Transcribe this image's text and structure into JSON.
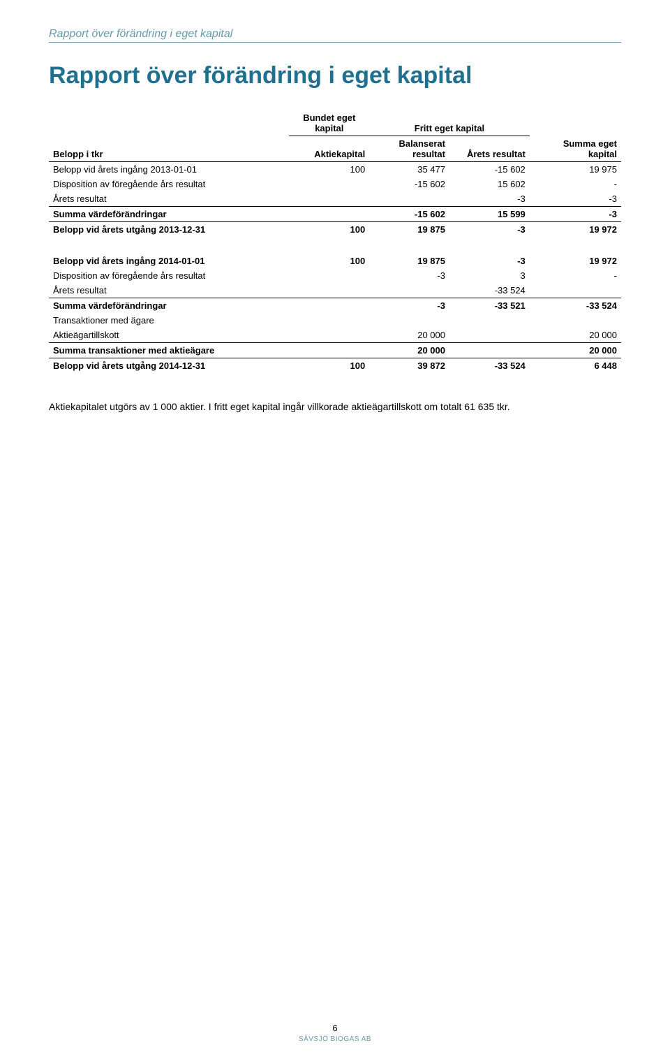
{
  "header": {
    "section_label": "Rapport över förändring i eget kapital",
    "main_title": "Rapport över förändring i eget kapital"
  },
  "table": {
    "group_headers": {
      "bundet": "Bundet eget kapital",
      "fritt": "Fritt eget kapital"
    },
    "columns": {
      "label": "Belopp i tkr",
      "c2": "Aktiekapital",
      "c3": "Balanserat resultat",
      "c4": "Årets resultat",
      "c5": "Summa eget kapital"
    },
    "rows": [
      {
        "label": "Belopp vid årets ingång 2013-01-01",
        "c2": "100",
        "c3": "35 477",
        "c4": "-15 602",
        "c5": "19 975",
        "bold": false,
        "border": false
      },
      {
        "label": "Disposition av föregående års resultat",
        "c2": "",
        "c3": "-15 602",
        "c4": "15 602",
        "c5": "-",
        "bold": false,
        "border": false
      },
      {
        "label": "Årets resultat",
        "c2": "",
        "c3": "",
        "c4": "-3",
        "c5": "-3",
        "bold": false,
        "border": true
      },
      {
        "label": "Summa värdeförändringar",
        "c2": "",
        "c3": "-15 602",
        "c4": "15 599",
        "c5": "-3",
        "bold": true,
        "border": true
      },
      {
        "label": "Belopp vid årets utgång 2013-12-31",
        "c2": "100",
        "c3": "19 875",
        "c4": "-3",
        "c5": "19 972",
        "bold": true,
        "border": false
      }
    ],
    "rows2": [
      {
        "label": "Belopp vid årets ingång 2014-01-01",
        "c2": "100",
        "c3": "19 875",
        "c4": "-3",
        "c5": "19 972",
        "bold": true,
        "border": false
      },
      {
        "label": "Disposition av föregående års resultat",
        "c2": "",
        "c3": "-3",
        "c4": "3",
        "c5": "-",
        "bold": false,
        "border": false
      },
      {
        "label": "Årets resultat",
        "c2": "",
        "c3": "",
        "c4": "-33 524",
        "c5": "",
        "bold": false,
        "border": true
      },
      {
        "label": "Summa värdeförändringar",
        "c2": "",
        "c3": "-3",
        "c4": "-33 521",
        "c5": "-33 524",
        "bold": true,
        "border": false
      },
      {
        "label": "Transaktioner med ägare",
        "c2": "",
        "c3": "",
        "c4": "",
        "c5": "",
        "bold": false,
        "border": false
      },
      {
        "label": "Aktieägartillskott",
        "c2": "",
        "c3": "20 000",
        "c4": "",
        "c5": "20 000",
        "bold": false,
        "border": true
      },
      {
        "label": "Summa transaktioner med aktieägare",
        "c2": "",
        "c3": "20 000",
        "c4": "",
        "c5": "20 000",
        "bold": true,
        "border": true
      },
      {
        "label": "Belopp vid årets utgång 2014-12-31",
        "c2": "100",
        "c3": "39 872",
        "c4": "-33 524",
        "c5": "6 448",
        "bold": true,
        "border": false
      }
    ]
  },
  "note": "Aktiekapitalet utgörs av 1 000 aktier. I fritt eget kapital ingår villkorade aktieägartillskott om totalt 61 635 tkr.",
  "footer": {
    "page": "6",
    "company": "SÄVSJÖ BIOGAS AB"
  },
  "styles": {
    "header_color": "#6699aa",
    "title_color": "#1f6f8f",
    "text_color": "#000000",
    "background_color": "#ffffff",
    "table_font_size": 13,
    "title_font_size": 34,
    "header_label_font_size": 16,
    "note_font_size": 14
  }
}
